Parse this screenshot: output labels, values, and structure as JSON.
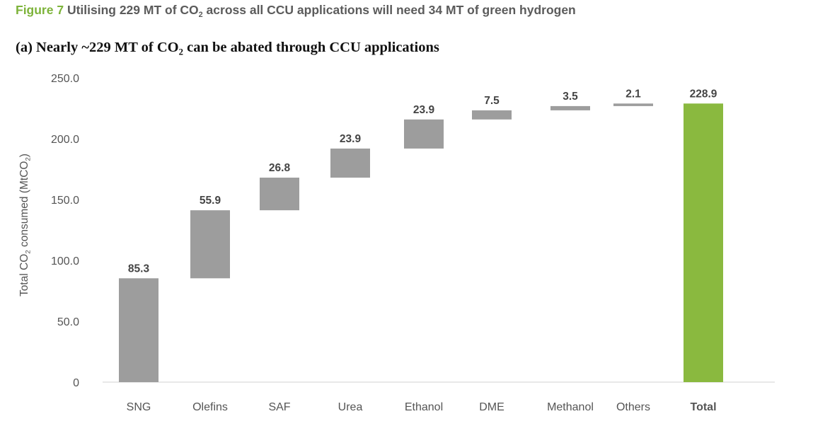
{
  "figure": {
    "label": "Figure 7",
    "title_part1": " Utilising 229 MT of CO",
    "title_sub": "2",
    "title_part2": " across all CCU applications will need 34 MT of green hydrogen"
  },
  "subtitle": {
    "part1": "(a) Nearly ~229 MT of CO",
    "sub": "2",
    "part2": " can be abated through CCU applications"
  },
  "ylabel": {
    "part1": "Total CO",
    "sub1": "2",
    "part2": " consumed (MtCO",
    "sub2": "2",
    "part3": ")"
  },
  "colors": {
    "step": "#9d9d9d",
    "total": "#8ab93f",
    "axis_text": "#555555",
    "label_text": "#444444"
  },
  "chart_data": {
    "type": "bar",
    "subtype": "waterfall",
    "categories": [
      "SNG",
      "Olefins",
      "SAF",
      "Urea",
      "Ethanol",
      "DME",
      "Methanol",
      "Others",
      "Total"
    ],
    "values": [
      85.3,
      55.9,
      26.8,
      23.9,
      23.9,
      7.5,
      3.5,
      2.1,
      228.9
    ],
    "value_labels": [
      "85.3",
      "55.9",
      "26.8",
      "23.9",
      "23.9",
      "7.5",
      "3.5",
      "2.1",
      "228.9"
    ],
    "total_index": 8,
    "ylim": [
      0,
      250
    ],
    "yticks": [
      0,
      50,
      100,
      150,
      200,
      250
    ],
    "ytick_labels": [
      "0",
      "50.0",
      "100.0",
      "150.0",
      "200.0",
      "250.0"
    ],
    "grid": false,
    "legend": "none"
  }
}
